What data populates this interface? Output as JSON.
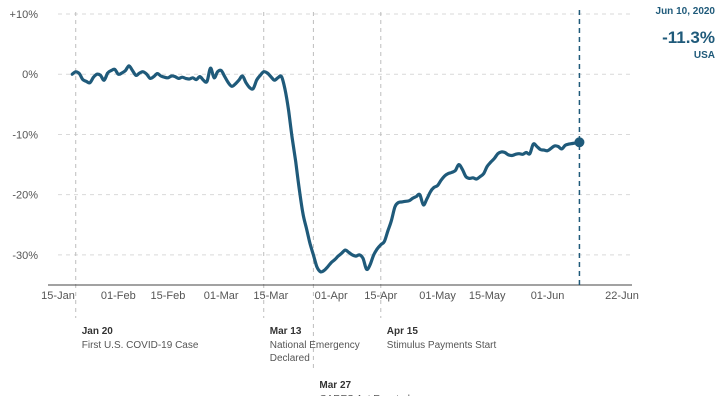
{
  "readout": {
    "date": "Jun 10, 2020",
    "value": "-11.3%",
    "region": "USA"
  },
  "chart_data": {
    "type": "line",
    "ylim": [
      -35,
      10
    ],
    "y_ticks": [
      {
        "value": 10,
        "label": "+10%"
      },
      {
        "value": 0,
        "label": "0%"
      },
      {
        "value": -10,
        "label": "-10%"
      },
      {
        "value": -20,
        "label": "-20%"
      },
      {
        "value": -30,
        "label": "-30%"
      }
    ],
    "x_range": [
      "2020-01-15",
      "2020-06-22"
    ],
    "x_ticks": [
      {
        "date": "2020-01-15",
        "label": "15-Jan"
      },
      {
        "date": "2020-02-01",
        "label": "01-Feb"
      },
      {
        "date": "2020-02-15",
        "label": "15-Feb"
      },
      {
        "date": "2020-03-01",
        "label": "01-Mar"
      },
      {
        "date": "2020-03-15",
        "label": "15-Mar"
      },
      {
        "date": "2020-04-01",
        "label": "01-Apr"
      },
      {
        "date": "2020-04-15",
        "label": "15-Apr"
      },
      {
        "date": "2020-05-01",
        "label": "01-May"
      },
      {
        "date": "2020-05-15",
        "label": "15-May"
      },
      {
        "date": "2020-06-01",
        "label": "01-Jun"
      },
      {
        "date": "2020-06-22",
        "label": "22-Jun"
      }
    ],
    "grid": true,
    "line_color": "#1f5a7a",
    "annotation_color": "#bdbdbd",
    "annotations": [
      {
        "date": "2020-01-20",
        "label": "Jan 20",
        "lines": [
          "First U.S. COVID-19 Case"
        ]
      },
      {
        "date": "2020-03-13",
        "label": "Mar 13",
        "lines": [
          "National Emergency",
          "Declared"
        ]
      },
      {
        "date": "2020-03-27",
        "label": "Mar 27",
        "lines": [
          "CARES Act Enacted"
        ]
      },
      {
        "date": "2020-04-15",
        "label": "Apr 15",
        "lines": [
          "Stimulus Payments Start"
        ]
      }
    ],
    "highlight": {
      "date": "2020-06-10",
      "value": -11.3
    },
    "series": [
      {
        "points": [
          [
            "2020-01-19",
            0.0
          ],
          [
            "2020-01-20",
            0.4
          ],
          [
            "2020-01-21",
            0.1
          ],
          [
            "2020-01-22",
            -0.9
          ],
          [
            "2020-01-23",
            -1.2
          ],
          [
            "2020-01-24",
            -1.4
          ],
          [
            "2020-01-25",
            -0.5
          ],
          [
            "2020-01-26",
            0.0
          ],
          [
            "2020-01-27",
            -0.2
          ],
          [
            "2020-01-28",
            -1.0
          ],
          [
            "2020-01-29",
            0.2
          ],
          [
            "2020-01-30",
            0.6
          ],
          [
            "2020-01-31",
            0.8
          ],
          [
            "2020-02-01",
            0.0
          ],
          [
            "2020-02-02",
            0.2
          ],
          [
            "2020-02-03",
            0.6
          ],
          [
            "2020-02-04",
            1.4
          ],
          [
            "2020-02-05",
            0.6
          ],
          [
            "2020-02-06",
            -0.2
          ],
          [
            "2020-02-07",
            0.2
          ],
          [
            "2020-02-08",
            0.4
          ],
          [
            "2020-02-09",
            0.0
          ],
          [
            "2020-02-10",
            -0.7
          ],
          [
            "2020-02-11",
            -0.4
          ],
          [
            "2020-02-12",
            0.1
          ],
          [
            "2020-02-13",
            -0.3
          ],
          [
            "2020-02-14",
            -0.5
          ],
          [
            "2020-02-15",
            -0.6
          ],
          [
            "2020-02-16",
            -0.3
          ],
          [
            "2020-02-17",
            -0.4
          ],
          [
            "2020-02-18",
            -0.7
          ],
          [
            "2020-02-19",
            -0.5
          ],
          [
            "2020-02-20",
            -0.7
          ],
          [
            "2020-02-21",
            -0.8
          ],
          [
            "2020-02-22",
            -0.6
          ],
          [
            "2020-02-23",
            -0.9
          ],
          [
            "2020-02-24",
            -0.4
          ],
          [
            "2020-02-25",
            -1.0
          ],
          [
            "2020-02-26",
            -1.2
          ],
          [
            "2020-02-27",
            1.0
          ],
          [
            "2020-02-28",
            -0.6
          ],
          [
            "2020-02-29",
            0.4
          ],
          [
            "2020-03-01",
            0.6
          ],
          [
            "2020-03-02",
            -0.4
          ],
          [
            "2020-03-03",
            -1.4
          ],
          [
            "2020-03-04",
            -2.0
          ],
          [
            "2020-03-05",
            -1.6
          ],
          [
            "2020-03-06",
            -1.0
          ],
          [
            "2020-03-07",
            -0.3
          ],
          [
            "2020-03-08",
            -1.4
          ],
          [
            "2020-03-09",
            -2.2
          ],
          [
            "2020-03-10",
            -2.4
          ],
          [
            "2020-03-11",
            -1.0
          ],
          [
            "2020-03-12",
            -0.2
          ],
          [
            "2020-03-13",
            0.4
          ],
          [
            "2020-03-14",
            0.2
          ],
          [
            "2020-03-15",
            -0.4
          ],
          [
            "2020-03-16",
            -1.0
          ],
          [
            "2020-03-17",
            -0.6
          ],
          [
            "2020-03-18",
            -0.4
          ],
          [
            "2020-03-19",
            -2.5
          ],
          [
            "2020-03-20",
            -6.0
          ],
          [
            "2020-03-21",
            -10.5
          ],
          [
            "2020-03-22",
            -14.5
          ],
          [
            "2020-03-23",
            -19.0
          ],
          [
            "2020-03-24",
            -23.0
          ],
          [
            "2020-03-25",
            -25.5
          ],
          [
            "2020-03-26",
            -28.0
          ],
          [
            "2020-03-27",
            -30.0
          ],
          [
            "2020-03-28",
            -32.0
          ],
          [
            "2020-03-29",
            -32.8
          ],
          [
            "2020-03-30",
            -32.6
          ],
          [
            "2020-03-31",
            -32.0
          ],
          [
            "2020-04-01",
            -31.3
          ],
          [
            "2020-04-02",
            -30.8
          ],
          [
            "2020-04-03",
            -30.2
          ],
          [
            "2020-04-04",
            -29.7
          ],
          [
            "2020-04-05",
            -29.2
          ],
          [
            "2020-04-06",
            -29.6
          ],
          [
            "2020-04-07",
            -30.0
          ],
          [
            "2020-04-08",
            -30.2
          ],
          [
            "2020-04-09",
            -30.0
          ],
          [
            "2020-04-10",
            -30.6
          ],
          [
            "2020-04-11",
            -32.4
          ],
          [
            "2020-04-12",
            -31.6
          ],
          [
            "2020-04-13",
            -30.0
          ],
          [
            "2020-04-14",
            -29.0
          ],
          [
            "2020-04-15",
            -28.3
          ],
          [
            "2020-04-16",
            -27.8
          ],
          [
            "2020-04-17",
            -26.0
          ],
          [
            "2020-04-18",
            -24.3
          ],
          [
            "2020-04-19",
            -22.0
          ],
          [
            "2020-04-20",
            -21.3
          ],
          [
            "2020-04-21",
            -21.2
          ],
          [
            "2020-04-22",
            -21.1
          ],
          [
            "2020-04-23",
            -21.0
          ],
          [
            "2020-04-24",
            -20.6
          ],
          [
            "2020-04-25",
            -20.3
          ],
          [
            "2020-04-26",
            -20.0
          ],
          [
            "2020-04-27",
            -21.7
          ],
          [
            "2020-04-28",
            -20.7
          ],
          [
            "2020-04-29",
            -19.5
          ],
          [
            "2020-04-30",
            -18.8
          ],
          [
            "2020-05-01",
            -18.5
          ],
          [
            "2020-05-02",
            -17.6
          ],
          [
            "2020-05-03",
            -16.9
          ],
          [
            "2020-05-04",
            -16.5
          ],
          [
            "2020-05-05",
            -16.3
          ],
          [
            "2020-05-06",
            -16.0
          ],
          [
            "2020-05-07",
            -15.0
          ],
          [
            "2020-05-08",
            -15.8
          ],
          [
            "2020-05-09",
            -17.0
          ],
          [
            "2020-05-10",
            -17.3
          ],
          [
            "2020-05-11",
            -17.2
          ],
          [
            "2020-05-12",
            -17.4
          ],
          [
            "2020-05-13",
            -17.0
          ],
          [
            "2020-05-14",
            -16.5
          ],
          [
            "2020-05-15",
            -15.3
          ],
          [
            "2020-05-16",
            -14.6
          ],
          [
            "2020-05-17",
            -14.0
          ],
          [
            "2020-05-18",
            -13.2
          ],
          [
            "2020-05-19",
            -12.9
          ],
          [
            "2020-05-20",
            -13.0
          ],
          [
            "2020-05-21",
            -13.4
          ],
          [
            "2020-05-22",
            -13.5
          ],
          [
            "2020-05-23",
            -13.3
          ],
          [
            "2020-05-24",
            -13.2
          ],
          [
            "2020-05-25",
            -13.3
          ],
          [
            "2020-05-26",
            -13.0
          ],
          [
            "2020-05-27",
            -13.2
          ],
          [
            "2020-05-28",
            -11.6
          ],
          [
            "2020-05-29",
            -12.0
          ],
          [
            "2020-05-30",
            -12.5
          ],
          [
            "2020-05-31",
            -12.6
          ],
          [
            "2020-06-01",
            -12.7
          ],
          [
            "2020-06-02",
            -12.3
          ],
          [
            "2020-06-03",
            -11.9
          ],
          [
            "2020-06-04",
            -12.0
          ],
          [
            "2020-06-05",
            -12.4
          ],
          [
            "2020-06-06",
            -11.8
          ],
          [
            "2020-06-07",
            -11.6
          ],
          [
            "2020-06-08",
            -11.5
          ],
          [
            "2020-06-09",
            -11.4
          ],
          [
            "2020-06-10",
            -11.3
          ]
        ]
      }
    ]
  }
}
